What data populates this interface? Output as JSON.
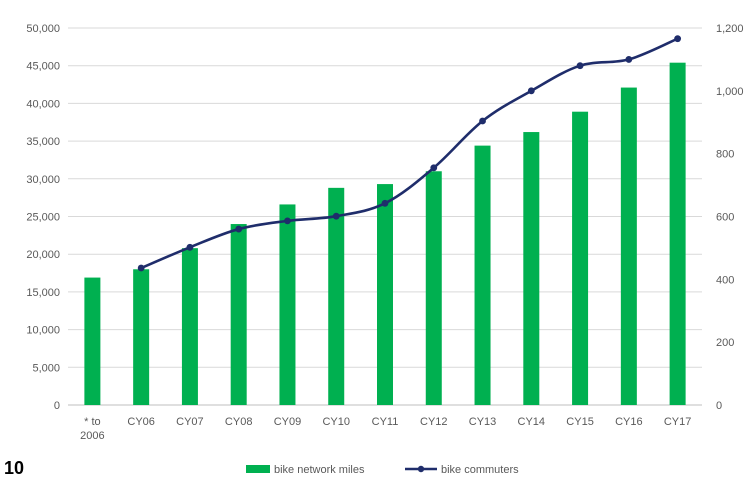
{
  "page_number": "10",
  "chart_data": {
    "type": "bar",
    "categories": [
      "* to 2006",
      "CY06",
      "CY07",
      "CY08",
      "CY09",
      "CY10",
      "CY11",
      "CY12",
      "CY13",
      "CY14",
      "CY15",
      "CY16",
      "CY17"
    ],
    "category_lines": [
      [
        "* to",
        "2006"
      ],
      [
        "CY06"
      ],
      [
        "CY07"
      ],
      [
        "CY08"
      ],
      [
        "CY09"
      ],
      [
        "CY10"
      ],
      [
        "CY11"
      ],
      [
        "CY12"
      ],
      [
        "CY13"
      ],
      [
        "CY14"
      ],
      [
        "CY15"
      ],
      [
        "CY16"
      ],
      [
        "CY17"
      ]
    ],
    "series": [
      {
        "name": "bike network miles",
        "type": "bar",
        "axis": "left",
        "color": "#00b050",
        "values": [
          16900,
          18000,
          20800,
          24000,
          26600,
          28800,
          29300,
          31000,
          34400,
          36200,
          38900,
          42100,
          45400
        ]
      },
      {
        "name": "bike commuters",
        "type": "line",
        "axis": "right",
        "color": "#1f2d6b",
        "values": [
          null,
          436,
          502,
          560,
          586,
          601,
          642,
          755,
          904,
          1000,
          1080,
          1100,
          1166
        ]
      }
    ],
    "y_left": {
      "min": 0,
      "max": 50000,
      "ticks": [
        "0",
        "5,000",
        "10,000",
        "15,000",
        "20,000",
        "25,000",
        "30,000",
        "35,000",
        "40,000",
        "45,000",
        "50,000"
      ]
    },
    "y_right": {
      "min": 0,
      "max": 1200,
      "ticks": [
        "0",
        "200",
        "400",
        "600",
        "800",
        "1,000",
        "1,200"
      ]
    },
    "title": "",
    "xlabel": "",
    "ylabel": "",
    "grid": true,
    "legend_position": "bottom"
  }
}
